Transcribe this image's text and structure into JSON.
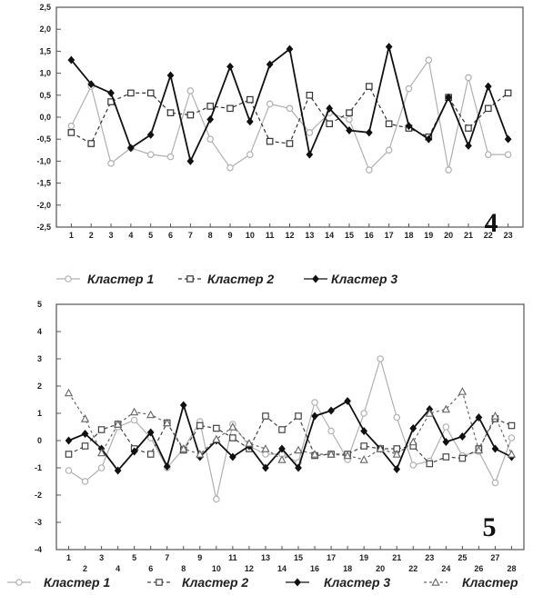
{
  "chart_data": [
    {
      "type": "line",
      "panel_label": "4",
      "x": [
        1,
        2,
        3,
        4,
        5,
        6,
        7,
        8,
        9,
        10,
        11,
        12,
        13,
        14,
        15,
        16,
        17,
        18,
        19,
        20,
        21,
        22,
        23
      ],
      "ylim": [
        -2.5,
        2.5
      ],
      "yticks": [
        "2,5",
        "2,0",
        "1,5",
        "1,0",
        "0,5",
        "0,0",
        "-0,5",
        "-1,0",
        "-1,5",
        "-2,0",
        "-2,5"
      ],
      "grid": false,
      "legend_position": "bottom",
      "series": [
        {
          "name": "Кластер 1",
          "color": "#b0b0b0",
          "dash": "none",
          "marker": "circle",
          "values": [
            -0.2,
            0.7,
            -1.05,
            -0.7,
            -0.85,
            -0.9,
            0.6,
            -0.5,
            -1.15,
            -0.85,
            0.3,
            0.2,
            -0.35,
            0.1,
            -0.05,
            -1.2,
            -0.75,
            0.65,
            1.3,
            -1.2,
            0.9,
            -0.85,
            -0.85
          ]
        },
        {
          "name": "Кластер 2",
          "color": "#333333",
          "dash": "4,3",
          "marker": "square",
          "values": [
            -0.35,
            -0.6,
            0.35,
            0.55,
            0.55,
            0.1,
            0.05,
            0.25,
            0.2,
            0.4,
            -0.55,
            -0.6,
            0.5,
            -0.15,
            0.1,
            0.7,
            -0.15,
            -0.25,
            -0.45,
            0.45,
            -0.25,
            0.2,
            0.55
          ]
        },
        {
          "name": "Кластер 3",
          "color": "#111111",
          "dash": "none",
          "marker": "diamond",
          "values": [
            1.3,
            0.75,
            0.55,
            -0.7,
            -0.4,
            0.95,
            -1.0,
            -0.05,
            1.15,
            -0.1,
            1.2,
            1.55,
            -0.85,
            0.2,
            -0.3,
            -0.35,
            1.6,
            -0.2,
            -0.5,
            0.45,
            -0.65,
            0.7,
            -0.5
          ]
        }
      ]
    },
    {
      "type": "line",
      "panel_label": "5",
      "x": [
        1,
        2,
        3,
        4,
        5,
        6,
        7,
        8,
        9,
        10,
        11,
        12,
        13,
        14,
        15,
        16,
        17,
        18,
        19,
        20,
        21,
        22,
        23,
        24,
        25,
        26,
        27,
        28
      ],
      "ylim": [
        -4,
        5
      ],
      "yticks": [
        "5",
        "4",
        "3",
        "2",
        "1",
        "0",
        "-1",
        "-2",
        "-3",
        "-4"
      ],
      "grid": false,
      "legend_position": "bottom",
      "series": [
        {
          "name": "Кластер 1",
          "color": "#b0b0b0",
          "dash": "none",
          "marker": "circle",
          "values": [
            -1.1,
            -1.5,
            -1.0,
            0.5,
            0.75,
            0.1,
            -1.0,
            -0.3,
            0.7,
            -2.15,
            0.6,
            -0.2,
            -0.5,
            -0.5,
            -0.8,
            1.4,
            0.35,
            -0.7,
            1.0,
            3.0,
            0.85,
            -0.9,
            -0.75,
            0.5,
            -0.55,
            -0.4,
            -1.55,
            0.1
          ]
        },
        {
          "name": "Кластер 2",
          "color": "#444444",
          "dash": "4,3",
          "marker": "square",
          "values": [
            -0.5,
            -0.2,
            0.4,
            0.6,
            -0.3,
            -0.5,
            0.65,
            -0.35,
            0.55,
            0.45,
            0.1,
            -0.3,
            0.9,
            0.4,
            0.9,
            -0.55,
            -0.5,
            -0.5,
            -0.2,
            -0.3,
            -0.3,
            -0.2,
            -0.85,
            -0.6,
            -0.65,
            -0.3,
            0.8,
            0.55
          ]
        },
        {
          "name": "Кластер 3",
          "color": "#111111",
          "dash": "none",
          "marker": "diamond",
          "values": [
            0.0,
            0.25,
            -0.3,
            -1.1,
            -0.4,
            0.3,
            -0.95,
            1.3,
            -0.6,
            0.0,
            -0.6,
            -0.2,
            -1.0,
            -0.3,
            -1.0,
            0.9,
            1.1,
            1.45,
            0.35,
            -0.3,
            -1.05,
            0.45,
            1.15,
            -0.05,
            0.15,
            0.85,
            -0.3,
            -0.6
          ]
        },
        {
          "name": "Кластер",
          "color": "#666666",
          "dash": "3,3",
          "marker": "triangle",
          "values": [
            1.75,
            0.8,
            -0.45,
            0.6,
            1.05,
            0.95,
            0.65,
            -0.3,
            -0.5,
            0.05,
            0.5,
            -0.1,
            -0.3,
            -0.7,
            -0.35,
            -0.5,
            -0.5,
            -0.55,
            -0.7,
            -0.3,
            -0.5,
            -0.05,
            1.0,
            1.15,
            1.8,
            -0.35,
            0.9,
            -0.5
          ]
        }
      ]
    }
  ]
}
